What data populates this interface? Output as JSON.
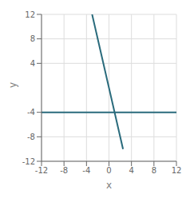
{
  "chart_data": {
    "type": "line",
    "xlabel": "x",
    "ylabel": "y",
    "xlim": [
      -12,
      12
    ],
    "ylim": [
      -12,
      12
    ],
    "xticks": [
      -12,
      -8,
      -4,
      0,
      4,
      8,
      12
    ],
    "yticks": [
      -12,
      -8,
      -4,
      4,
      8,
      12
    ],
    "grid": true,
    "color": "#2a6b7c",
    "series": [
      {
        "x": [
          -12,
          12
        ],
        "values": [
          -4,
          -4
        ]
      },
      {
        "x": [
          -3,
          2.5
        ],
        "values": [
          12,
          -10
        ]
      }
    ]
  }
}
